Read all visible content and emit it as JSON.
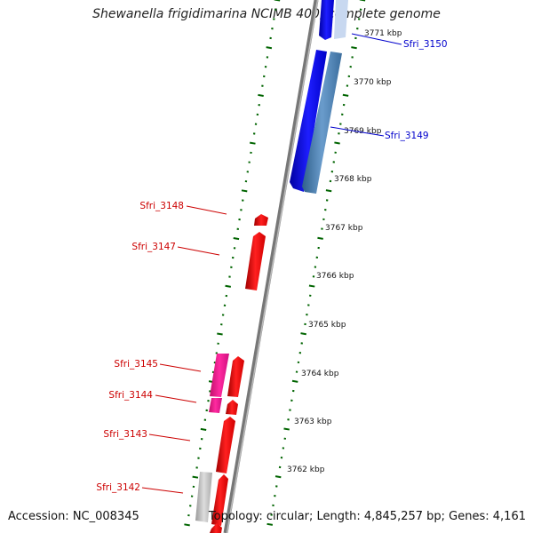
{
  "title": "Shewanella frigidimarina NCIMB 400, complete genome",
  "footer": {
    "accession": "Accession: NC_008345",
    "summary": "Topology: circular; Length: 4,845,257 bp; Genes: 4,161"
  },
  "colors": {
    "forward_cds": "#ff0000",
    "reverse_cds": "#0000ff",
    "reverse_cds_alt": "#4682b4",
    "pink_gene": "#ff1493",
    "grey_gene": "#bbbbbb",
    "backbone": "#888888",
    "ticks": "#006400",
    "labels_forward": "#cc0000",
    "labels_reverse": "#0000cc"
  },
  "scale_labels": [
    "3771 kbp",
    "3770 kbp",
    "3769 kbp",
    "3768 kbp",
    "3767 kbp",
    "3766 kbp",
    "3765 kbp",
    "3764 kbp",
    "3763 kbp",
    "3762 kbp"
  ],
  "gene_labels": [
    {
      "text": "Sfri_3150",
      "strand": "reverse"
    },
    {
      "text": "Sfri_3149",
      "strand": "reverse"
    },
    {
      "text": "Sfri_3148",
      "strand": "forward"
    },
    {
      "text": "Sfri_3147",
      "strand": "forward"
    },
    {
      "text": "Sfri_3145",
      "strand": "forward"
    },
    {
      "text": "Sfri_3144",
      "strand": "forward"
    },
    {
      "text": "Sfri_3143",
      "strand": "forward"
    },
    {
      "text": "Sfri_3142",
      "strand": "forward"
    }
  ]
}
